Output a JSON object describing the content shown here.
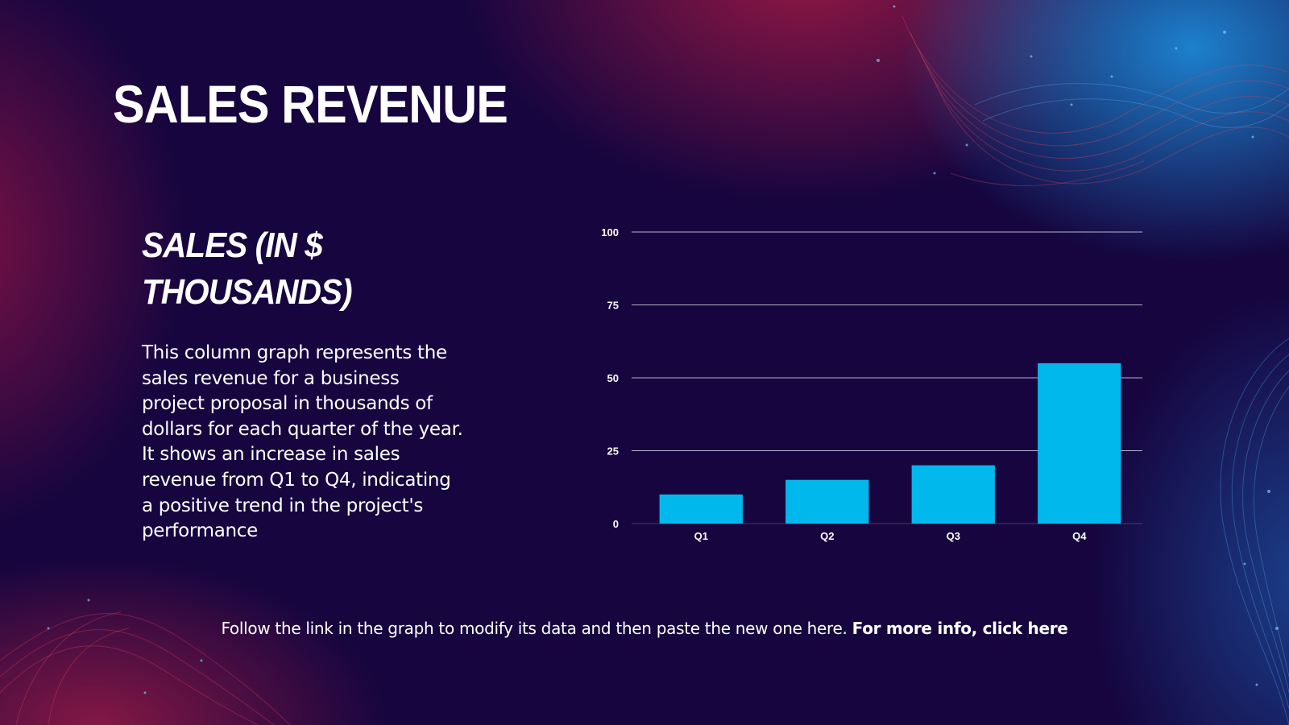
{
  "slide": {
    "title": "SALES REVENUE",
    "subtitle": "SALES (IN $ THOUSANDS)",
    "description": "This column graph represents the sales revenue for a business project proposal in thousands of dollars for each quarter of the year. It shows an increase in sales revenue from Q1 to Q4, indicating a positive trend in the project's performance"
  },
  "footer": {
    "text": "Follow the link in the graph to modify its data and then paste the new one here.",
    "link_label": "For more info, click here"
  },
  "colors": {
    "bar": "#00b8ec",
    "grid": "#c8c8d8",
    "text": "#ffffff"
  },
  "chart_data": {
    "type": "bar",
    "categories": [
      "Q1",
      "Q2",
      "Q3",
      "Q4"
    ],
    "values": [
      10,
      15,
      20,
      55
    ],
    "yticks": [
      0,
      25,
      50,
      75,
      100
    ],
    "ylim": [
      0,
      100
    ],
    "title": "",
    "xlabel": "",
    "ylabel": "",
    "grid": true
  }
}
